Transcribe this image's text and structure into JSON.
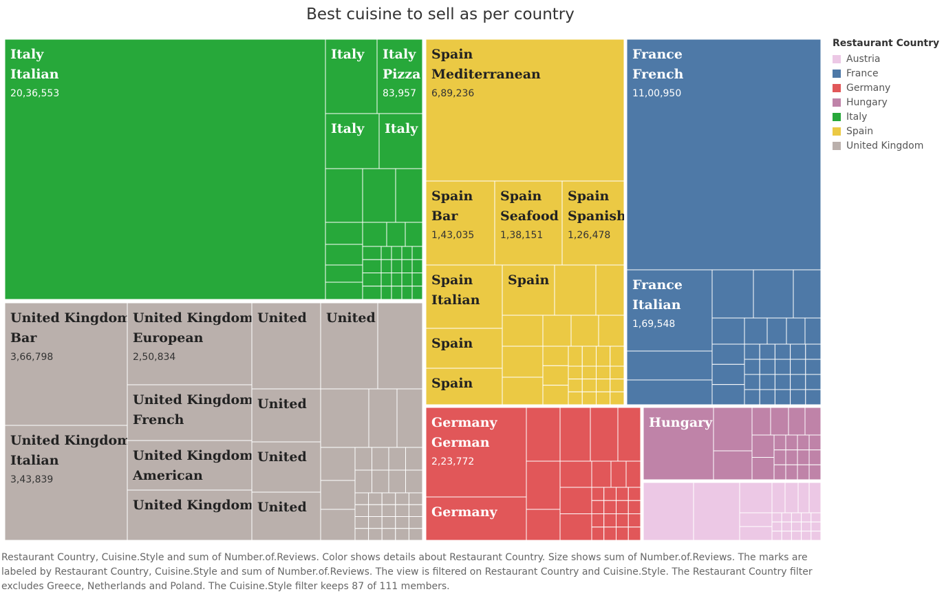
{
  "title": "Best cuisine to sell as per country",
  "legend": {
    "title": "Restaurant Country",
    "items": [
      {
        "name": "Austria",
        "color": "#ecc8e5"
      },
      {
        "name": "France",
        "color": "#4e79a7"
      },
      {
        "name": "Germany",
        "color": "#e15759"
      },
      {
        "name": "Hungary",
        "color": "#bf83a8"
      },
      {
        "name": "Italy",
        "color": "#27a83a"
      },
      {
        "name": "Spain",
        "color": "#ebc944"
      },
      {
        "name": "United Kingdom",
        "color": "#bab0ac"
      }
    ]
  },
  "caption": "Restaurant Country, Cuisine.Style and sum of Number.of.Reviews.  Color shows details about Restaurant Country.  Size shows sum of Number.of.Reviews.  The marks are labeled by Restaurant Country, Cuisine.Style and sum of Number.of.Reviews. The view is filtered on Restaurant Country and Cuisine.Style. The Restaurant Country filter excludes Greece, Netherlands and Poland. The Cuisine.Style filter keeps 87 of 111 members.",
  "chart_data": {
    "type": "treemap",
    "title": "Best cuisine to sell as per country",
    "color_by": "Restaurant Country",
    "size_by": "sum of Number.of.Reviews",
    "labeled_tiles": [
      {
        "country": "Italy",
        "cuisine": "Italian",
        "label": "Italy\nItalian",
        "value_label": "20,36,553",
        "value": 2036553
      },
      {
        "country": "Italy",
        "cuisine": "",
        "label": "Italy",
        "value_label": ""
      },
      {
        "country": "Italy",
        "cuisine": "Pizza",
        "label": "Italy\nPizza",
        "value_label": "83,957",
        "value": 83957
      },
      {
        "country": "Italy",
        "cuisine": "",
        "label": "Italy",
        "value_label": ""
      },
      {
        "country": "Italy",
        "cuisine": "",
        "label": "Italy",
        "value_label": ""
      },
      {
        "country": "Spain",
        "cuisine": "Mediterranean",
        "label": "Spain\nMediterranean",
        "value_label": "6,89,236",
        "value": 689236
      },
      {
        "country": "Spain",
        "cuisine": "Bar",
        "label": "Spain\nBar",
        "value_label": "1,43,035",
        "value": 143035
      },
      {
        "country": "Spain",
        "cuisine": "Seafood",
        "label": "Spain\nSeafood",
        "value_label": "1,38,151",
        "value": 138151
      },
      {
        "country": "Spain",
        "cuisine": "Spanish",
        "label": "Spain\nSpanish",
        "value_label": "1,26,478",
        "value": 126478
      },
      {
        "country": "Spain",
        "cuisine": "Italian",
        "label": "Spain\nItalian",
        "value_label": ""
      },
      {
        "country": "Spain",
        "cuisine": "",
        "label": "Spain",
        "value_label": ""
      },
      {
        "country": "Spain",
        "cuisine": "",
        "label": "Spain",
        "value_label": ""
      },
      {
        "country": "Spain",
        "cuisine": "",
        "label": "Spain",
        "value_label": ""
      },
      {
        "country": "France",
        "cuisine": "French",
        "label": "France\nFrench",
        "value_label": "11,00,950",
        "value": 1100950
      },
      {
        "country": "France",
        "cuisine": "Italian",
        "label": "France\nItalian",
        "value_label": "1,69,548",
        "value": 169548
      },
      {
        "country": "United Kingdom",
        "cuisine": "Bar",
        "label": "United Kingdom\nBar",
        "value_label": "3,66,798",
        "value": 366798
      },
      {
        "country": "United Kingdom",
        "cuisine": "European",
        "label": "United Kingdom\nEuropean",
        "value_label": "2,50,834",
        "value": 250834
      },
      {
        "country": "United Kingdom",
        "cuisine": "",
        "label": "United",
        "value_label": ""
      },
      {
        "country": "United Kingdom",
        "cuisine": "",
        "label": "United",
        "value_label": ""
      },
      {
        "country": "United Kingdom",
        "cuisine": "French",
        "label": "United Kingdom\nFrench",
        "value_label": ""
      },
      {
        "country": "United Kingdom",
        "cuisine": "",
        "label": "United",
        "value_label": ""
      },
      {
        "country": "United Kingdom",
        "cuisine": "Italian",
        "label": "United Kingdom\nItalian",
        "value_label": "3,43,839",
        "value": 343839
      },
      {
        "country": "United Kingdom",
        "cuisine": "American",
        "label": "United Kingdom\nAmerican",
        "value_label": ""
      },
      {
        "country": "United Kingdom",
        "cuisine": "",
        "label": "United",
        "value_label": ""
      },
      {
        "country": "United Kingdom",
        "cuisine": "",
        "label": "United Kingdom",
        "value_label": ""
      },
      {
        "country": "United Kingdom",
        "cuisine": "",
        "label": "United",
        "value_label": ""
      },
      {
        "country": "Germany",
        "cuisine": "German",
        "label": "Germany\nGerman",
        "value_label": "2,23,772",
        "value": 223772
      },
      {
        "country": "Germany",
        "cuisine": "",
        "label": "Germany",
        "value_label": ""
      },
      {
        "country": "Hungary",
        "cuisine": "",
        "label": "Hungary",
        "value_label": ""
      }
    ]
  }
}
